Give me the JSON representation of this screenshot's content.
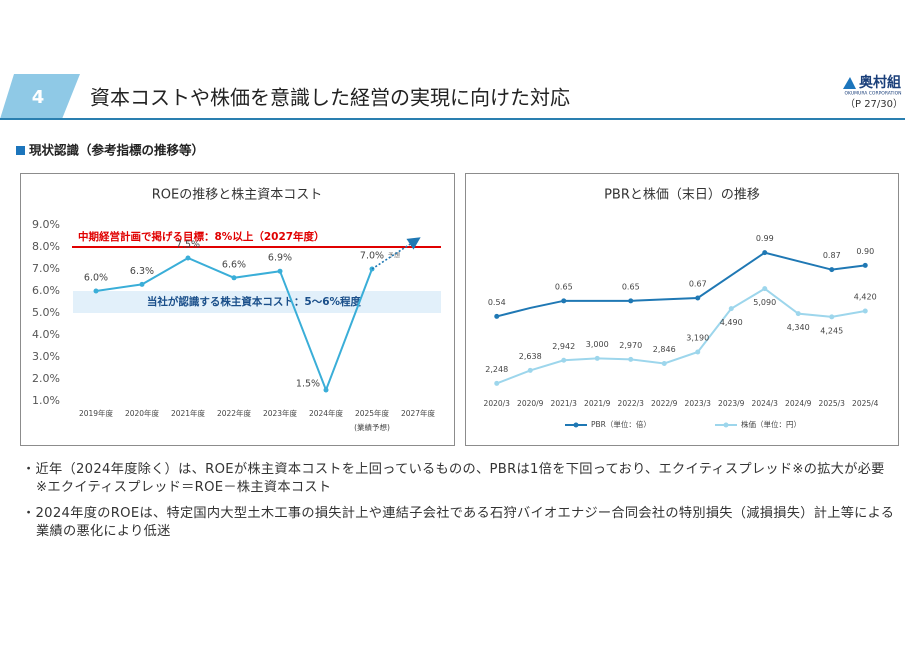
{
  "header": {
    "section_number": "4",
    "title": "資本コストや株価を意識した経営の実現に向けた対応",
    "logo": "奥村組",
    "logo_sub": "OKUMURA CORPORATION",
    "page": "（P 27/30）"
  },
  "section_heading": "現状認識（参考指標の推移等）",
  "chart_data": [
    {
      "type": "roe_line",
      "title": "ROEの推移と株主資本コスト",
      "categories": [
        "2019年度",
        "2020年度",
        "2021年度",
        "2022年度",
        "2023年度",
        "2024年度",
        "2025年度",
        "2027年度"
      ],
      "category_sublabels": [
        null,
        null,
        null,
        null,
        null,
        null,
        "(業績予想)",
        null
      ],
      "values": [
        6.0,
        6.3,
        7.5,
        6.6,
        6.9,
        1.5,
        7.0,
        null
      ],
      "value_labels": [
        "6.0%",
        "6.3%",
        "7.5%",
        "6.6%",
        "6.9%",
        "1.5%",
        "7.0%",
        null
      ],
      "value_label_notes": [
        null,
        null,
        null,
        null,
        null,
        null,
        "予想",
        null
      ],
      "color": "#3aaed8",
      "ylim": [
        1,
        9
      ],
      "yticks": [
        {
          "value": 1,
          "label": "1.0%"
        },
        {
          "value": 2,
          "label": "2.0%"
        },
        {
          "value": 3,
          "label": "3.0%"
        },
        {
          "value": 4,
          "label": "4.0%"
        },
        {
          "value": 5,
          "label": "5.0%"
        },
        {
          "value": 6,
          "label": "6.0%"
        },
        {
          "value": 7,
          "label": "7.0%"
        },
        {
          "value": 8,
          "label": "8.0%"
        },
        {
          "value": 9,
          "label": "9.0%"
        }
      ],
      "target": {
        "value": 8,
        "label": "中期経営計画で掲げる目標：8%以上（2027年度）",
        "color": "#e00000"
      },
      "cost_band": {
        "from": 5,
        "to": 6,
        "label": "当社が認識する株主資本コスト：5～6%程度",
        "color": "#e2f0fa"
      }
    },
    {
      "type": "dual_line",
      "title": "PBRと株価（末日）の推移",
      "categories": [
        "2020/3",
        "2020/9",
        "2021/3",
        "2021/9",
        "2022/3",
        "2022/9",
        "2023/3",
        "2023/9",
        "2024/3",
        "2024/9",
        "2025/3",
        "2025/4"
      ],
      "ylim": [
        -0.05,
        1.15
      ],
      "y2lim": [
        1750,
        6850
      ],
      "series": [
        {
          "name": "PBR（単位：倍）",
          "color": "#1f78b4",
          "values": [
            0.54,
            0.6,
            0.65,
            0.65,
            0.65,
            0.66,
            0.67,
            0.83,
            0.99,
            0.93,
            0.87,
            0.9
          ],
          "value_labels": [
            "0.54",
            null,
            "0.65",
            null,
            "0.65",
            null,
            "0.67",
            null,
            "0.99",
            null,
            "0.87",
            "0.90"
          ]
        },
        {
          "name": "株価（単位：円）",
          "color": "#9dd6ec",
          "axis": "y2",
          "values": [
            2248,
            2638,
            2942,
            3000,
            2970,
            2846,
            3190,
            4490,
            5090,
            4340,
            4245,
            4420
          ],
          "value_labels": [
            "2,248",
            "2,638",
            "2,942",
            "3,000",
            "2,970",
            "2,846",
            "3,190",
            "4,490",
            "5,090",
            "4,340",
            "4,245",
            "4,420"
          ]
        }
      ]
    }
  ],
  "notes": [
    "・近年（2024年度除く）は、ROEが株主資本コストを上回っているものの、PBRは1倍を下回っており、エクイティスプレッド※の拡大が必要",
    "※エクイティスプレッド＝ROE－株主資本コスト",
    "・2024年度のROEは、特定国内大型土木工事の損失計上や連結子会社である石狩バイオエナジー合同会社の特別損失（減損損失）計上等による業績の悪化により低迷"
  ]
}
